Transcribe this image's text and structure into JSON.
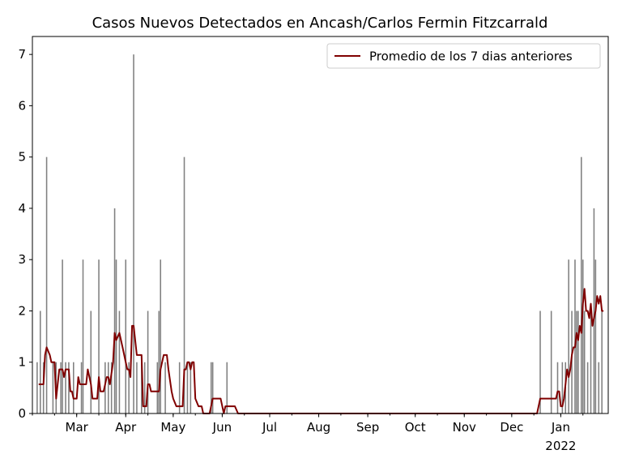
{
  "chart_data": {
    "type": "bar",
    "title": "Casos Nuevos Detectados en Ancash/Carlos Fermin Fitzcarrald",
    "xlabel": "",
    "ylabel": "",
    "xlim": [
      "2021-02-01",
      "2022-01-31"
    ],
    "ylim": [
      0,
      7.35
    ],
    "y_ticks": [
      0,
      1,
      2,
      3,
      4,
      5,
      6,
      7
    ],
    "x_ticks": [
      {
        "date": "2021-03-01",
        "label": "Mar"
      },
      {
        "date": "2021-04-01",
        "label": "Apr"
      },
      {
        "date": "2021-05-01",
        "label": "May"
      },
      {
        "date": "2021-06-01",
        "label": "Jun"
      },
      {
        "date": "2021-07-01",
        "label": "Jul"
      },
      {
        "date": "2021-08-01",
        "label": "Aug"
      },
      {
        "date": "2021-09-01",
        "label": "Sep"
      },
      {
        "date": "2021-10-01",
        "label": "Oct"
      },
      {
        "date": "2021-11-01",
        "label": "Nov"
      },
      {
        "date": "2021-12-01",
        "label": "Dec"
      },
      {
        "date": "2022-01-01",
        "label": "Jan",
        "sublabel": "2022"
      }
    ],
    "grid": false,
    "legend": {
      "position": "top-right",
      "entries": [
        "Promedio de los 7 dias anteriores"
      ]
    },
    "colors": {
      "bars": "#808080",
      "line": "#800000",
      "axis": "#000000"
    },
    "series": [
      {
        "type": "bar",
        "values_by_date": [
          [
            "2021-02-04",
            1
          ],
          [
            "2021-02-06",
            2
          ],
          [
            "2021-02-08",
            1
          ],
          [
            "2021-02-10",
            5
          ],
          [
            "2021-02-14",
            1
          ],
          [
            "2021-02-16",
            1
          ],
          [
            "2021-02-19",
            1
          ],
          [
            "2021-02-20",
            3
          ],
          [
            "2021-02-22",
            1
          ],
          [
            "2021-02-24",
            1
          ],
          [
            "2021-02-27",
            1
          ],
          [
            "2021-03-04",
            1
          ],
          [
            "2021-03-05",
            3
          ],
          [
            "2021-03-10",
            2
          ],
          [
            "2021-03-15",
            3
          ],
          [
            "2021-03-19",
            1
          ],
          [
            "2021-03-21",
            1
          ],
          [
            "2021-03-23",
            1
          ],
          [
            "2021-03-25",
            4
          ],
          [
            "2021-03-26",
            3
          ],
          [
            "2021-03-28",
            2
          ],
          [
            "2021-04-01",
            3
          ],
          [
            "2021-04-03",
            1
          ],
          [
            "2021-04-06",
            7
          ],
          [
            "2021-04-08",
            1
          ],
          [
            "2021-04-11",
            1
          ],
          [
            "2021-04-13",
            1
          ],
          [
            "2021-04-15",
            2
          ],
          [
            "2021-04-21",
            1
          ],
          [
            "2021-04-22",
            2
          ],
          [
            "2021-04-23",
            3
          ],
          [
            "2021-04-26",
            1
          ],
          [
            "2021-05-05",
            1
          ],
          [
            "2021-05-08",
            5
          ],
          [
            "2021-05-10",
            1
          ],
          [
            "2021-05-12",
            1
          ],
          [
            "2021-05-25",
            1
          ],
          [
            "2021-05-26",
            1
          ],
          [
            "2021-06-04",
            1
          ],
          [
            "2021-12-19",
            2
          ],
          [
            "2021-12-26",
            2
          ],
          [
            "2021-12-30",
            1
          ],
          [
            "2022-01-02",
            1
          ],
          [
            "2022-01-04",
            1
          ],
          [
            "2022-01-06",
            3
          ],
          [
            "2022-01-08",
            2
          ],
          [
            "2022-01-10",
            3
          ],
          [
            "2022-01-11",
            2
          ],
          [
            "2022-01-12",
            2
          ],
          [
            "2022-01-14",
            5
          ],
          [
            "2022-01-15",
            3
          ],
          [
            "2022-01-16",
            2
          ],
          [
            "2022-01-18",
            1
          ],
          [
            "2022-01-20",
            2
          ],
          [
            "2022-01-22",
            4
          ],
          [
            "2022-01-23",
            3
          ],
          [
            "2022-01-25",
            1
          ],
          [
            "2022-01-27",
            2
          ]
        ]
      },
      {
        "type": "line",
        "name": "Promedio de los 7 dias anteriores",
        "points": [
          [
            "2021-02-05",
            0.57
          ],
          [
            "2021-02-08",
            0.57
          ],
          [
            "2021-02-09",
            1.14
          ],
          [
            "2021-02-10",
            1.29
          ],
          [
            "2021-02-12",
            1.14
          ],
          [
            "2021-02-13",
            1.0
          ],
          [
            "2021-02-15",
            1.0
          ],
          [
            "2021-02-16",
            0.29
          ],
          [
            "2021-02-18",
            0.86
          ],
          [
            "2021-02-20",
            0.86
          ],
          [
            "2021-02-21",
            0.71
          ],
          [
            "2021-02-22",
            0.86
          ],
          [
            "2021-02-24",
            0.86
          ],
          [
            "2021-02-25",
            0.43
          ],
          [
            "2021-02-26",
            0.43
          ],
          [
            "2021-02-27",
            0.29
          ],
          [
            "2021-03-01",
            0.29
          ],
          [
            "2021-03-02",
            0.71
          ],
          [
            "2021-03-03",
            0.57
          ],
          [
            "2021-03-07",
            0.57
          ],
          [
            "2021-03-08",
            0.86
          ],
          [
            "2021-03-10",
            0.57
          ],
          [
            "2021-03-11",
            0.29
          ],
          [
            "2021-03-14",
            0.29
          ],
          [
            "2021-03-15",
            0.71
          ],
          [
            "2021-03-16",
            0.43
          ],
          [
            "2021-03-18",
            0.43
          ],
          [
            "2021-03-20",
            0.71
          ],
          [
            "2021-03-21",
            0.71
          ],
          [
            "2021-03-22",
            0.57
          ],
          [
            "2021-03-24",
            1.0
          ],
          [
            "2021-03-25",
            1.57
          ],
          [
            "2021-03-26",
            1.43
          ],
          [
            "2021-03-28",
            1.57
          ],
          [
            "2021-03-30",
            1.29
          ],
          [
            "2021-04-01",
            1.0
          ],
          [
            "2021-04-02",
            0.86
          ],
          [
            "2021-04-03",
            0.86
          ],
          [
            "2021-04-04",
            0.71
          ],
          [
            "2021-04-05",
            1.71
          ],
          [
            "2021-04-06",
            1.71
          ],
          [
            "2021-04-08",
            1.14
          ],
          [
            "2021-04-11",
            1.14
          ],
          [
            "2021-04-12",
            0.14
          ],
          [
            "2021-04-14",
            0.14
          ],
          [
            "2021-04-15",
            0.57
          ],
          [
            "2021-04-16",
            0.57
          ],
          [
            "2021-04-17",
            0.43
          ],
          [
            "2021-04-22",
            0.43
          ],
          [
            "2021-04-23",
            0.86
          ],
          [
            "2021-04-25",
            1.14
          ],
          [
            "2021-04-27",
            1.14
          ],
          [
            "2021-04-28",
            0.86
          ],
          [
            "2021-04-30",
            0.43
          ],
          [
            "2021-05-01",
            0.29
          ],
          [
            "2021-05-03",
            0.14
          ],
          [
            "2021-05-07",
            0.14
          ],
          [
            "2021-05-08",
            0.86
          ],
          [
            "2021-05-09",
            0.86
          ],
          [
            "2021-05-10",
            1.0
          ],
          [
            "2021-05-11",
            1.0
          ],
          [
            "2021-05-12",
            0.86
          ],
          [
            "2021-05-13",
            1.0
          ],
          [
            "2021-05-14",
            1.0
          ],
          [
            "2021-05-15",
            0.29
          ],
          [
            "2021-05-17",
            0.14
          ],
          [
            "2021-05-19",
            0.14
          ],
          [
            "2021-05-20",
            0.0
          ],
          [
            "2021-05-24",
            0.0
          ],
          [
            "2021-05-26",
            0.29
          ],
          [
            "2021-05-31",
            0.29
          ],
          [
            "2021-06-02",
            0.0
          ],
          [
            "2021-06-03",
            0.14
          ],
          [
            "2021-06-09",
            0.14
          ],
          [
            "2021-06-11",
            0.0
          ],
          [
            "2021-12-17",
            0.0
          ],
          [
            "2021-12-19",
            0.29
          ],
          [
            "2021-12-29",
            0.29
          ],
          [
            "2021-12-30",
            0.43
          ],
          [
            "2021-12-31",
            0.43
          ],
          [
            "2022-01-01",
            0.14
          ],
          [
            "2022-01-02",
            0.14
          ],
          [
            "2022-01-03",
            0.29
          ],
          [
            "2022-01-04",
            0.57
          ],
          [
            "2022-01-05",
            0.86
          ],
          [
            "2022-01-06",
            0.71
          ],
          [
            "2022-01-07",
            0.86
          ],
          [
            "2022-01-08",
            1.14
          ],
          [
            "2022-01-09",
            1.29
          ],
          [
            "2022-01-10",
            1.29
          ],
          [
            "2022-01-11",
            1.57
          ],
          [
            "2022-01-12",
            1.43
          ],
          [
            "2022-01-13",
            1.71
          ],
          [
            "2022-01-14",
            1.57
          ],
          [
            "2022-01-15",
            2.14
          ],
          [
            "2022-01-16",
            2.43
          ],
          [
            "2022-01-17",
            2.0
          ],
          [
            "2022-01-18",
            2.0
          ],
          [
            "2022-01-19",
            1.86
          ],
          [
            "2022-01-20",
            2.14
          ],
          [
            "2022-01-21",
            1.71
          ],
          [
            "2022-01-22",
            1.86
          ],
          [
            "2022-01-23",
            2.0
          ],
          [
            "2022-01-24",
            2.29
          ],
          [
            "2022-01-25",
            2.14
          ],
          [
            "2022-01-26",
            2.29
          ],
          [
            "2022-01-27",
            2.0
          ],
          [
            "2022-01-28",
            2.0
          ]
        ]
      }
    ]
  }
}
